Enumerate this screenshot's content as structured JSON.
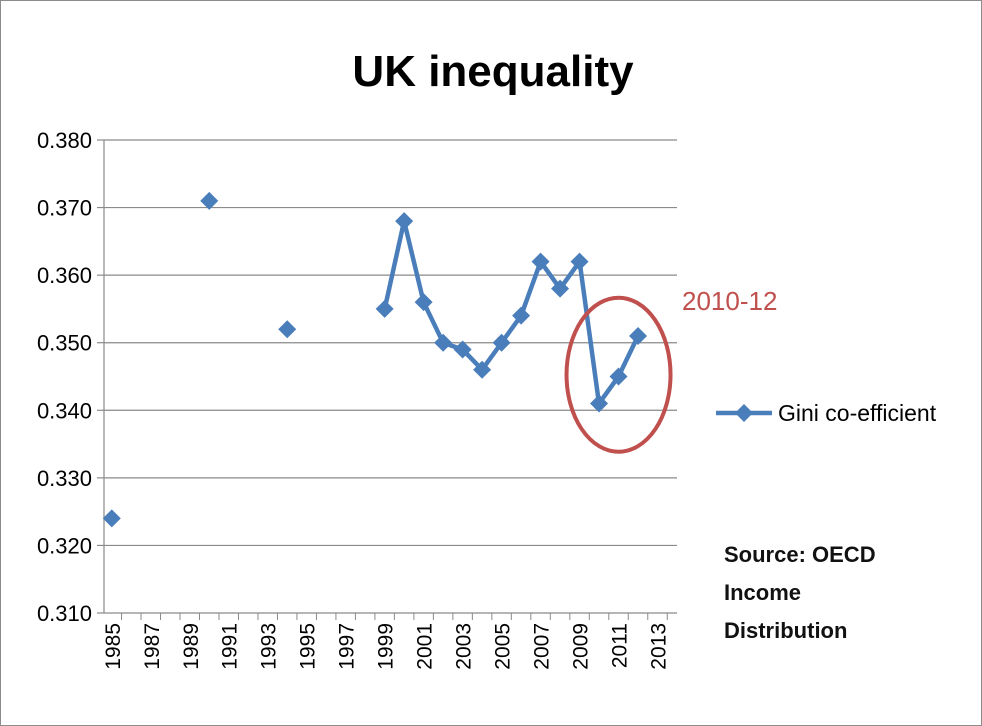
{
  "chart_data": {
    "type": "line",
    "title": "UK inequality",
    "xlabel": "",
    "ylabel": "",
    "xlim": [
      1984.6,
      2014.0
    ],
    "ylim": [
      0.31,
      0.38
    ],
    "y_ticks": [
      "0.310",
      "0.320",
      "0.330",
      "0.340",
      "0.350",
      "0.360",
      "0.370",
      "0.380"
    ],
    "x_ticks": [
      "1985",
      "1987",
      "1989",
      "1991",
      "1993",
      "1995",
      "1997",
      "1999",
      "2001",
      "2003",
      "2005",
      "2007",
      "2009",
      "2011",
      "2013"
    ],
    "grid": "horizontal",
    "legend_position": "right",
    "series": [
      {
        "name": "Gini co-efficient",
        "color": "#4a7ebb",
        "marker": "diamond",
        "points": [
          {
            "x": 1985,
            "y": 0.324
          },
          {
            "x": 1990,
            "y": 0.371
          },
          {
            "x": 1994,
            "y": 0.352
          },
          {
            "x": 1999,
            "y": 0.355
          },
          {
            "x": 2000,
            "y": 0.368
          },
          {
            "x": 2001,
            "y": 0.356
          },
          {
            "x": 2002,
            "y": 0.35
          },
          {
            "x": 2003,
            "y": 0.349
          },
          {
            "x": 2004,
            "y": 0.346
          },
          {
            "x": 2005,
            "y": 0.35
          },
          {
            "x": 2006,
            "y": 0.354
          },
          {
            "x": 2007,
            "y": 0.362
          },
          {
            "x": 2008,
            "y": 0.358
          },
          {
            "x": 2009,
            "y": 0.362
          },
          {
            "x": 2010,
            "y": 0.341
          },
          {
            "x": 2011,
            "y": 0.345
          },
          {
            "x": 2012,
            "y": 0.351
          }
        ]
      }
    ],
    "annotations": [
      {
        "text": "2010-12",
        "color": "#c0504d",
        "highlight": "ellipse",
        "years": [
          2010,
          2012
        ]
      }
    ]
  },
  "source": {
    "line1": "Source:  OECD",
    "line2": "Income",
    "line3": "Distribution"
  }
}
